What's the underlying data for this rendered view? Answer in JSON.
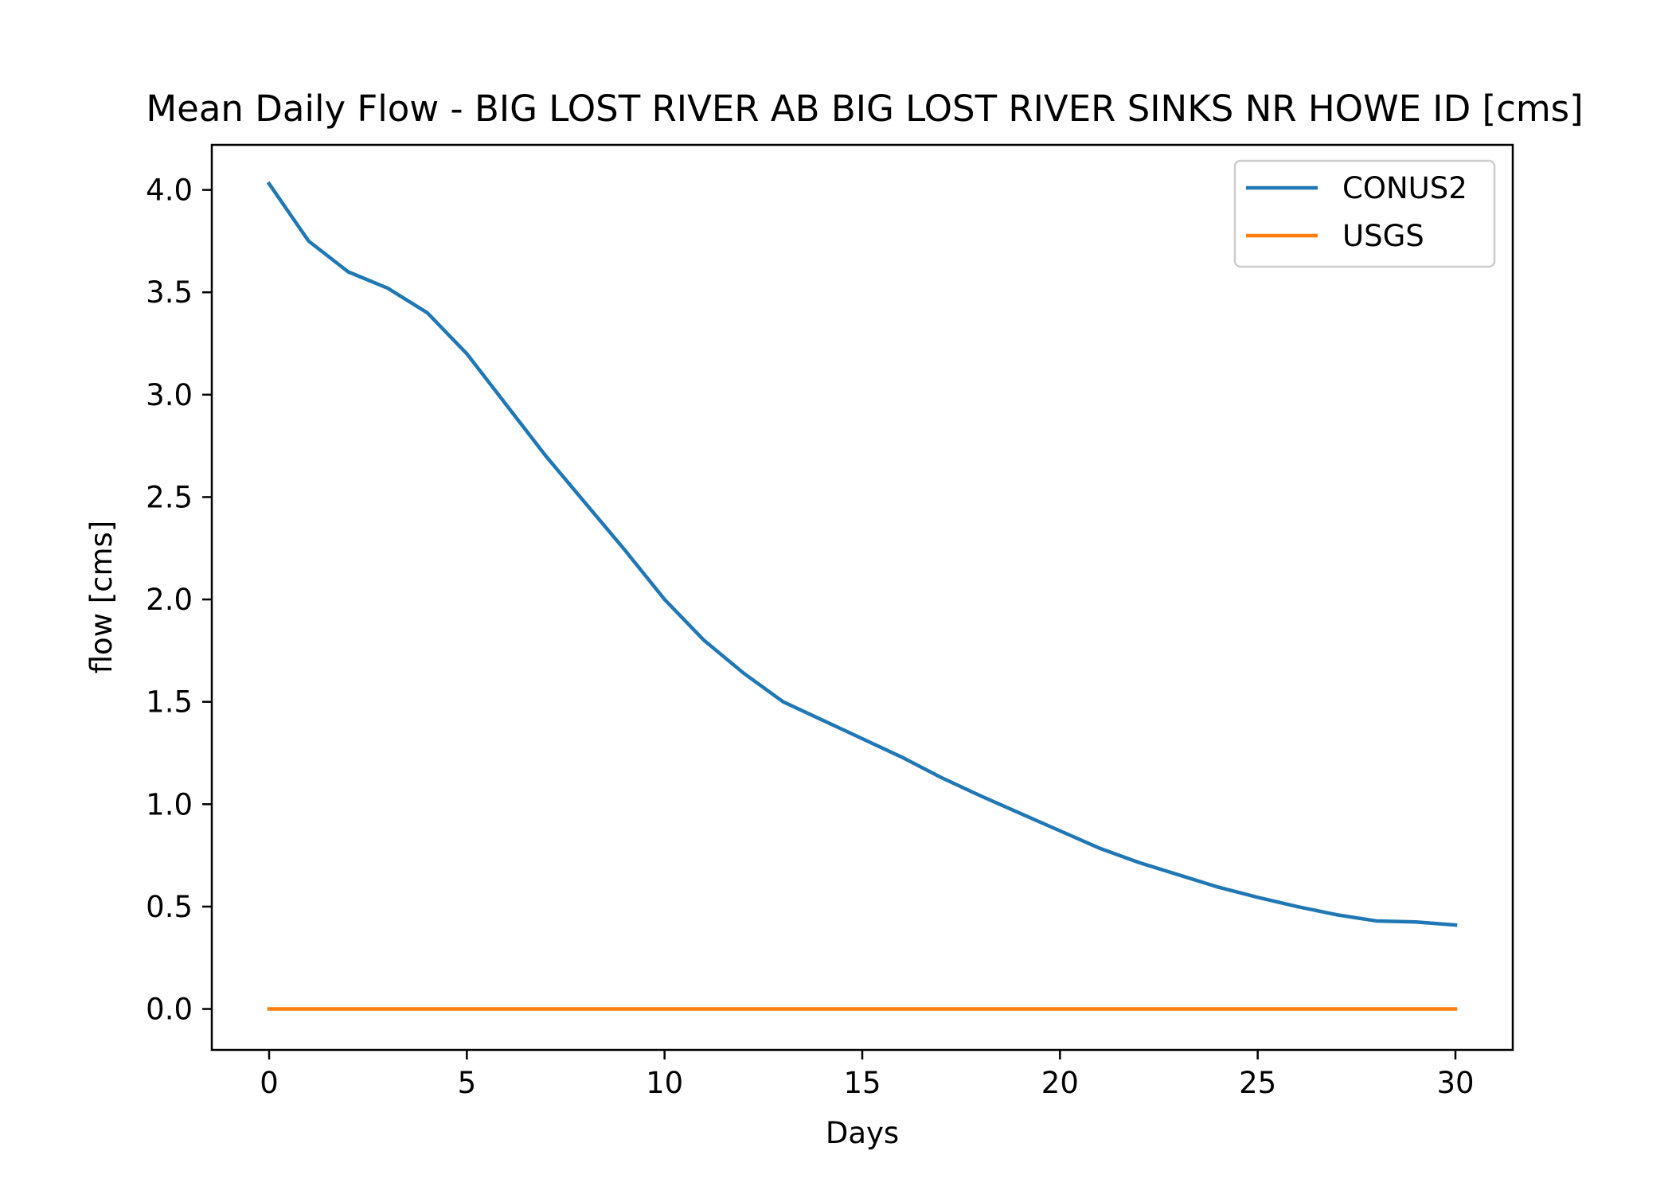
{
  "chart_data": {
    "type": "line",
    "title": "Mean Daily Flow - BIG LOST RIVER AB BIG LOST RIVER SINKS NR HOWE ID [cms]",
    "xlabel": "Days",
    "ylabel": "flow [cms]",
    "xlim": [
      -1.45,
      31.45
    ],
    "ylim": [
      -0.2,
      4.22
    ],
    "xticks": [
      0,
      5,
      10,
      15,
      20,
      25,
      30
    ],
    "yticks": [
      0.0,
      0.5,
      1.0,
      1.5,
      2.0,
      2.5,
      3.0,
      3.5,
      4.0
    ],
    "ytick_labels": [
      "0.0",
      "0.5",
      "1.0",
      "1.5",
      "2.0",
      "2.5",
      "3.0",
      "3.5",
      "4.0"
    ],
    "grid": false,
    "legend_position": "top-right",
    "x": [
      0,
      1,
      2,
      3,
      4,
      5,
      6,
      7,
      8,
      9,
      10,
      11,
      12,
      13,
      14,
      15,
      16,
      17,
      18,
      19,
      20,
      21,
      22,
      23,
      24,
      25,
      26,
      27,
      28,
      29,
      30
    ],
    "series": [
      {
        "name": "CONUS2",
        "color": "#1f77b4",
        "values": [
          4.03,
          3.75,
          3.6,
          3.52,
          3.4,
          3.2,
          2.95,
          2.7,
          2.47,
          2.24,
          2.0,
          1.8,
          1.64,
          1.5,
          1.41,
          1.32,
          1.23,
          1.13,
          1.04,
          0.955,
          0.87,
          0.785,
          0.715,
          0.655,
          0.595,
          0.545,
          0.5,
          0.46,
          0.43,
          0.425,
          0.41
        ]
      },
      {
        "name": "USGS",
        "color": "#ff7f0e",
        "values": [
          0,
          0,
          0,
          0,
          0,
          0,
          0,
          0,
          0,
          0,
          0,
          0,
          0,
          0,
          0,
          0,
          0,
          0,
          0,
          0,
          0,
          0,
          0,
          0,
          0,
          0,
          0,
          0,
          0,
          0,
          0
        ]
      }
    ]
  }
}
